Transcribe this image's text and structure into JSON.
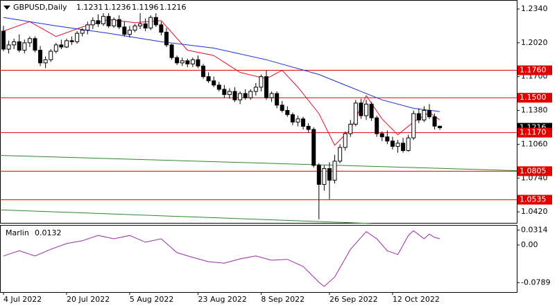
{
  "chart_data": {
    "type": "candlestick",
    "title": "GBPUSD,Daily",
    "categories": [
      "4 Jul 2022",
      null,
      null,
      null,
      null,
      null,
      null,
      null,
      null,
      null,
      null,
      null,
      "20 Jul 2022",
      null,
      null,
      null,
      null,
      null,
      null,
      null,
      null,
      null,
      null,
      null,
      "5 Aug 2022",
      null,
      null,
      null,
      null,
      null,
      null,
      null,
      null,
      null,
      null,
      null,
      null,
      "23 Aug 2022",
      null,
      null,
      null,
      null,
      null,
      null,
      null,
      null,
      null,
      null,
      null,
      "8 Sep 2022",
      null,
      null,
      null,
      null,
      null,
      null,
      null,
      null,
      null,
      null,
      null,
      null,
      "26 Sep 2022",
      null,
      null,
      null,
      null,
      null,
      null,
      null,
      null,
      null,
      null,
      null,
      "12 Oct 2022",
      null,
      null,
      null,
      null,
      null,
      null,
      null,
      null,
      null
    ],
    "open": [
      1.213,
      1.196,
      1.2,
      1.203,
      1.195,
      1.202,
      1.206,
      1.195,
      1.183,
      1.186,
      1.194,
      1.2,
      1.198,
      1.204,
      1.203,
      1.211,
      1.214,
      1.219,
      1.223,
      1.22,
      1.227,
      1.218,
      1.224,
      1.217,
      1.21,
      1.214,
      1.218,
      1.22,
      1.216,
      1.226,
      1.219,
      1.212,
      1.2,
      1.188,
      1.183,
      1.185,
      1.182,
      1.186,
      1.18,
      1.17,
      1.166,
      1.162,
      1.158,
      1.153,
      1.156,
      1.148,
      1.154,
      1.15,
      1.156,
      1.16,
      1.17,
      1.15,
      1.154,
      1.143,
      1.138,
      1.134,
      1.127,
      1.13,
      1.123,
      1.12,
      1.086,
      1.068,
      1.083,
      1.072,
      1.09,
      1.103,
      1.116,
      1.125,
      1.145,
      1.133,
      1.144,
      1.131,
      1.116,
      1.113,
      1.109,
      1.104,
      1.107,
      1.1,
      1.112,
      1.135,
      1.129,
      1.138,
      1.132,
      1.1231
    ],
    "high": [
      1.218,
      1.204,
      1.206,
      1.21,
      1.205,
      1.208,
      1.208,
      1.199,
      1.189,
      1.196,
      1.202,
      1.205,
      1.206,
      1.208,
      1.213,
      1.216,
      1.222,
      1.226,
      1.229,
      1.23,
      1.23,
      1.226,
      1.228,
      1.222,
      1.218,
      1.22,
      1.23,
      1.225,
      1.228,
      1.23,
      1.222,
      1.216,
      1.201,
      1.19,
      1.188,
      1.187,
      1.188,
      1.19,
      1.182,
      1.174,
      1.17,
      1.165,
      1.162,
      1.159,
      1.16,
      1.156,
      1.158,
      1.158,
      1.164,
      1.172,
      1.176,
      1.156,
      1.156,
      1.147,
      1.142,
      1.136,
      1.133,
      1.132,
      1.126,
      1.122,
      1.088,
      1.086,
      1.089,
      1.096,
      1.106,
      1.118,
      1.129,
      1.148,
      1.149,
      1.148,
      1.146,
      1.133,
      1.118,
      1.119,
      1.113,
      1.11,
      1.112,
      1.115,
      1.138,
      1.14,
      1.142,
      1.144,
      1.135,
      1.1236
    ],
    "low": [
      1.194,
      1.192,
      1.196,
      1.193,
      1.192,
      1.198,
      1.193,
      1.18,
      1.178,
      1.184,
      1.192,
      1.196,
      1.197,
      1.2,
      1.201,
      1.208,
      1.21,
      1.215,
      1.217,
      1.218,
      1.216,
      1.216,
      1.215,
      1.208,
      1.207,
      1.212,
      1.215,
      1.213,
      1.214,
      1.217,
      1.209,
      1.198,
      1.186,
      1.181,
      1.18,
      1.179,
      1.179,
      1.178,
      1.168,
      1.164,
      1.16,
      1.156,
      1.15,
      1.149,
      1.146,
      1.144,
      1.148,
      1.148,
      1.152,
      1.156,
      1.148,
      1.146,
      1.14,
      1.136,
      1.132,
      1.124,
      1.123,
      1.12,
      1.117,
      1.084,
      1.035,
      1.062,
      1.054,
      1.069,
      1.088,
      1.1,
      1.113,
      1.123,
      1.13,
      1.129,
      1.128,
      1.113,
      1.109,
      1.106,
      1.101,
      1.098,
      1.098,
      1.099,
      1.11,
      1.126,
      1.127,
      1.13,
      1.12,
      1.1196
    ],
    "close": [
      1.196,
      1.2,
      1.203,
      1.195,
      1.202,
      1.206,
      1.195,
      1.183,
      1.186,
      1.194,
      1.2,
      1.198,
      1.204,
      1.203,
      1.211,
      1.214,
      1.219,
      1.223,
      1.22,
      1.227,
      1.218,
      1.224,
      1.217,
      1.21,
      1.214,
      1.218,
      1.22,
      1.216,
      1.226,
      1.219,
      1.212,
      1.2,
      1.188,
      1.183,
      1.185,
      1.182,
      1.186,
      1.18,
      1.17,
      1.166,
      1.162,
      1.158,
      1.153,
      1.156,
      1.148,
      1.154,
      1.15,
      1.156,
      1.16,
      1.17,
      1.15,
      1.154,
      1.143,
      1.138,
      1.134,
      1.127,
      1.13,
      1.123,
      1.12,
      1.086,
      1.068,
      1.083,
      1.072,
      1.09,
      1.103,
      1.116,
      1.125,
      1.145,
      1.133,
      1.144,
      1.131,
      1.116,
      1.113,
      1.109,
      1.104,
      1.107,
      1.1,
      1.112,
      1.135,
      1.129,
      1.138,
      1.132,
      1.1231,
      1.1216
    ],
    "ylim": [
      1.0316,
      1.2425
    ],
    "yticks": [
      {
        "value": 1.234,
        "label": "1.2340"
      },
      {
        "value": 1.202,
        "label": "1.2020"
      },
      {
        "value": 1.17,
        "label": "1.1700"
      },
      {
        "value": 1.138,
        "label": "1.1380"
      },
      {
        "value": 1.106,
        "label": "1.1060"
      },
      {
        "value": 1.074,
        "label": "1.0740"
      },
      {
        "value": 1.042,
        "label": "1.0420"
      }
    ],
    "levels": [
      {
        "value": 1.176,
        "label": "1.1760"
      },
      {
        "value": 1.15,
        "label": "1.1500"
      },
      {
        "value": 1.117,
        "label": "1.1170"
      },
      1.0805,
      1.0535
    ],
    "level_color": "#e00000",
    "overlays": [
      {
        "color": "#e0102a",
        "x": [
          0,
          5,
          10,
          15,
          20,
          25,
          30,
          35,
          40,
          45,
          50,
          53,
          56,
          60,
          63,
          66,
          69,
          72,
          75,
          78,
          81,
          83
        ],
        "values": [
          1.213,
          1.222,
          1.208,
          1.217,
          1.224,
          1.221,
          1.223,
          1.195,
          1.19,
          1.174,
          1.168,
          1.176,
          1.16,
          1.135,
          1.105,
          1.12,
          1.152,
          1.13,
          1.115,
          1.127,
          1.136,
          1.129
        ]
      },
      {
        "color": "#1a2fd8",
        "x": [
          0,
          10,
          20,
          30,
          40,
          50,
          60,
          66,
          72,
          78,
          83
        ],
        "values": [
          1.226,
          1.218,
          1.211,
          1.203,
          1.197,
          1.186,
          1.172,
          1.16,
          1.148,
          1.14,
          1.137
        ]
      },
      {
        "color": "#2a8a2a",
        "x": [
          -1,
          98
        ],
        "values": [
          1.0955,
          1.081
        ]
      },
      {
        "color": "#2a8a2a",
        "x": [
          -1,
          70
        ],
        "values": [
          1.044,
          1.031
        ]
      }
    ],
    "indicator": {
      "title": "Marlin",
      "color": "#9a2aa8",
      "x": [
        0,
        3,
        6,
        9,
        12,
        15,
        18,
        21,
        24,
        27,
        30,
        33,
        36,
        39,
        42,
        45,
        48,
        51,
        54,
        57,
        60,
        61,
        63,
        66,
        69,
        71,
        73,
        75,
        77,
        78,
        80,
        81,
        82,
        83
      ],
      "values": [
        -0.023,
        -0.012,
        -0.023,
        -0.009,
        0.003,
        0.009,
        0.02,
        0.013,
        0.02,
        0.006,
        0.013,
        -0.016,
        -0.026,
        -0.035,
        -0.038,
        -0.029,
        -0.023,
        -0.032,
        -0.03,
        -0.045,
        -0.078,
        -0.087,
        -0.067,
        -0.009,
        0.028,
        0.013,
        -0.012,
        -0.02,
        0.02,
        0.03,
        0.013,
        0.023,
        0.016,
        0.0132
      ],
      "ylim": [
        -0.0987,
        0.0421
      ],
      "yticks": [
        0.0314,
        {
          "value": 0,
          "label": "0.00"
        },
        -0.0789
      ]
    }
  }
}
